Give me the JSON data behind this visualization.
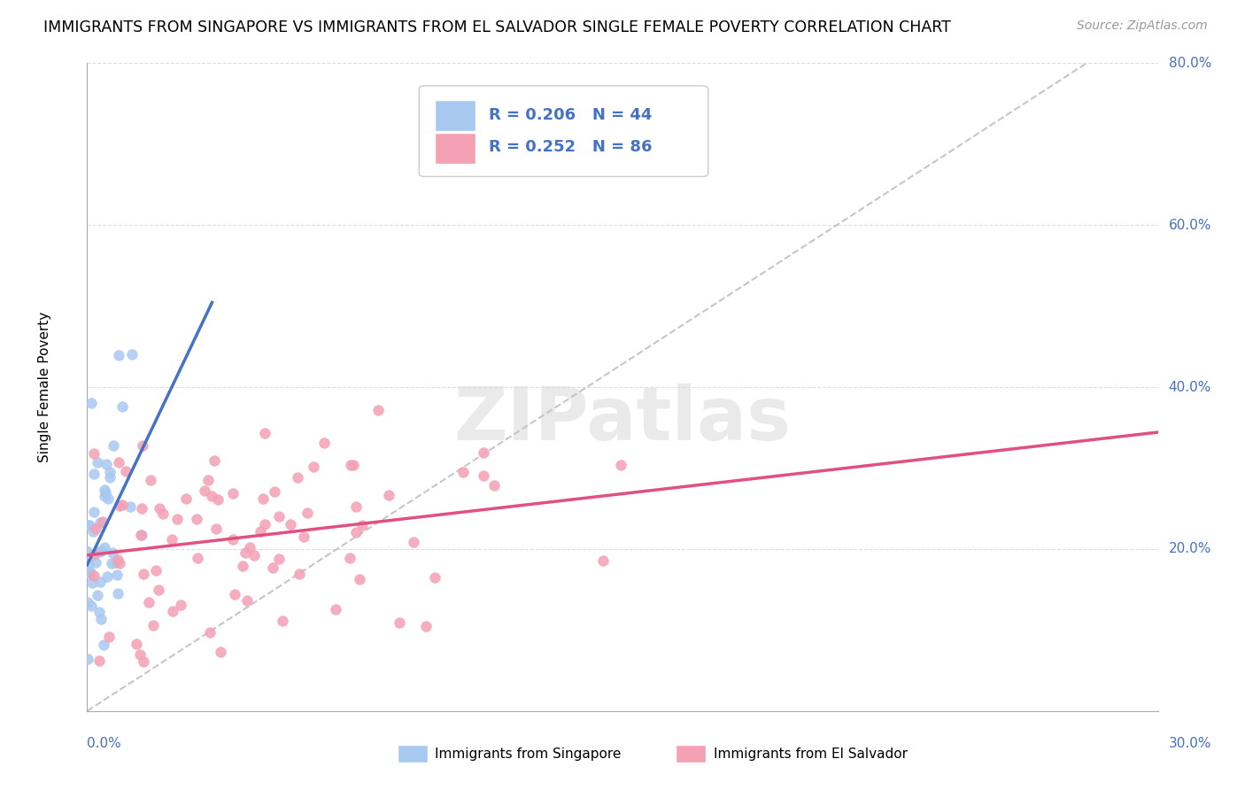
{
  "title": "IMMIGRANTS FROM SINGAPORE VS IMMIGRANTS FROM EL SALVADOR SINGLE FEMALE POVERTY CORRELATION CHART",
  "source": "Source: ZipAtlas.com",
  "ylabel": "Single Female Poverty",
  "legend_r1": "R = 0.206",
  "legend_n1": "N = 44",
  "legend_r2": "R = 0.252",
  "legend_n2": "N = 86",
  "label_singapore": "Immigrants from Singapore",
  "label_elsalvador": "Immigrants from El Salvador",
  "color_singapore": "#a8c8f0",
  "color_elsalvador": "#f4a0b5",
  "color_singapore_line": "#4472C4",
  "color_elsalvador_line": "#e05080",
  "color_diagonal": "#c0c0c0",
  "watermark": "ZIPatlas",
  "xlim": [
    0,
    0.3
  ],
  "ylim": [
    0,
    0.8
  ],
  "x_ticks_pct": [
    "0.0%",
    "30.0%"
  ],
  "y_ticks_pct": [
    "20.0%",
    "40.0%",
    "60.0%",
    "80.0%"
  ],
  "y_ticks_val": [
    0.2,
    0.4,
    0.6,
    0.8
  ]
}
